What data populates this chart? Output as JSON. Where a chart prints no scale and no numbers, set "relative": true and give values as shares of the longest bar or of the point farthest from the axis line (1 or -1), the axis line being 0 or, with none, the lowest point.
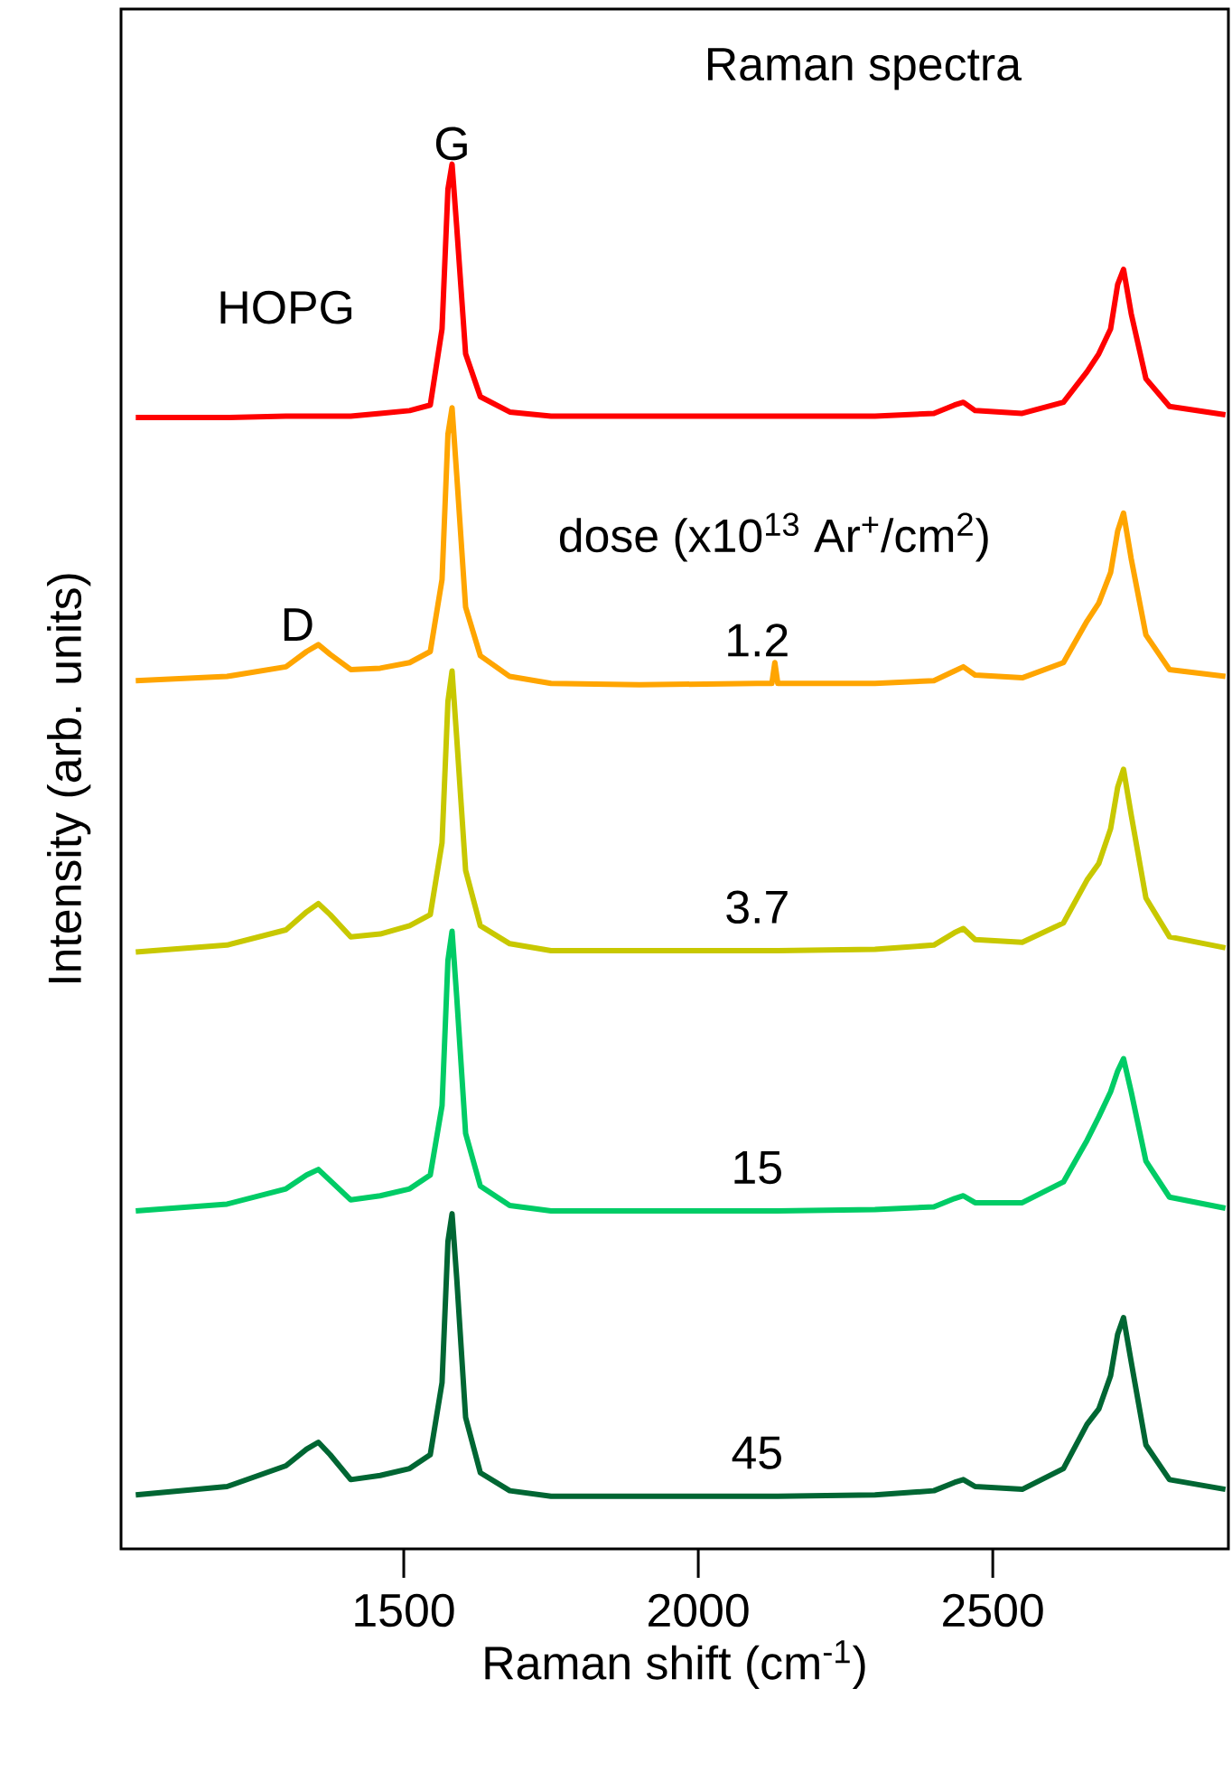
{
  "chart_data": {
    "type": "line",
    "title": "Raman spectra",
    "xlabel": "Raman shift (cm$^{-1}$)",
    "ylabel": "Intensity (arb. units)",
    "legend_title": "dose (x10$^{13}$ Ar$^{+}$/cm$^{2}$)",
    "annotations": [
      {
        "text": "G",
        "x": 1582,
        "y": 1.0
      },
      {
        "text": "D",
        "x": 1355,
        "y": 0.653
      }
    ],
    "relative": true,
    "xlim": [
      1020,
      2900
    ],
    "xticks": [
      1500,
      2000,
      2500
    ],
    "line_style": "solid",
    "x": [
      1045,
      1200,
      1300,
      1335,
      1355,
      1375,
      1410,
      1460,
      1510,
      1545,
      1565,
      1575,
      1582,
      1590,
      1605,
      1630,
      1680,
      1750,
      1900,
      2100,
      2125,
      2130,
      2135,
      2300,
      2400,
      2435,
      2450,
      2470,
      2550,
      2620,
      2660,
      2680,
      2700,
      2712,
      2722,
      2735,
      2760,
      2800,
      2895
    ],
    "series": [
      {
        "name": "HOPG",
        "color": "#ff0000",
        "values": [
          0.817,
          0.817,
          0.818,
          0.818,
          0.818,
          0.818,
          0.818,
          0.82,
          0.822,
          0.826,
          0.881,
          0.982,
          1.0,
          0.954,
          0.863,
          0.832,
          0.821,
          0.818,
          0.818,
          0.818,
          0.818,
          0.818,
          0.818,
          0.818,
          0.82,
          0.826,
          0.828,
          0.822,
          0.82,
          0.828,
          0.85,
          0.863,
          0.881,
          0.913,
          0.924,
          0.892,
          0.845,
          0.825,
          0.819
        ]
      },
      {
        "name": "1.2",
        "color": "#ffa500",
        "values": [
          0.627,
          0.63,
          0.637,
          0.648,
          0.653,
          0.646,
          0.635,
          0.636,
          0.64,
          0.648,
          0.7,
          0.805,
          0.824,
          0.775,
          0.68,
          0.645,
          0.63,
          0.625,
          0.624,
          0.625,
          0.625,
          0.64,
          0.625,
          0.625,
          0.627,
          0.634,
          0.637,
          0.631,
          0.629,
          0.64,
          0.67,
          0.683,
          0.705,
          0.735,
          0.748,
          0.715,
          0.66,
          0.635,
          0.63
        ]
      },
      {
        "name": "3.7",
        "color": "#c8c800",
        "values": [
          0.431,
          0.436,
          0.447,
          0.46,
          0.466,
          0.458,
          0.442,
          0.444,
          0.45,
          0.458,
          0.51,
          0.612,
          0.634,
          0.585,
          0.49,
          0.45,
          0.437,
          0.432,
          0.432,
          0.432,
          0.432,
          0.432,
          0.432,
          0.433,
          0.436,
          0.445,
          0.448,
          0.44,
          0.438,
          0.452,
          0.483,
          0.495,
          0.52,
          0.55,
          0.563,
          0.53,
          0.47,
          0.442,
          0.434
        ]
      },
      {
        "name": "15",
        "color": "#00cc66",
        "values": [
          0.244,
          0.249,
          0.26,
          0.27,
          0.274,
          0.266,
          0.252,
          0.255,
          0.26,
          0.27,
          0.32,
          0.425,
          0.446,
          0.398,
          0.3,
          0.262,
          0.248,
          0.244,
          0.244,
          0.244,
          0.244,
          0.244,
          0.244,
          0.245,
          0.247,
          0.253,
          0.255,
          0.25,
          0.25,
          0.265,
          0.295,
          0.312,
          0.33,
          0.345,
          0.354,
          0.33,
          0.28,
          0.254,
          0.246
        ]
      },
      {
        "name": "45",
        "color": "#006633",
        "values": [
          0.039,
          0.045,
          0.06,
          0.072,
          0.077,
          0.068,
          0.05,
          0.053,
          0.058,
          0.068,
          0.12,
          0.222,
          0.242,
          0.195,
          0.095,
          0.055,
          0.042,
          0.038,
          0.038,
          0.038,
          0.038,
          0.038,
          0.038,
          0.039,
          0.042,
          0.048,
          0.05,
          0.045,
          0.043,
          0.058,
          0.09,
          0.101,
          0.125,
          0.155,
          0.167,
          0.135,
          0.075,
          0.05,
          0.043
        ]
      }
    ]
  }
}
